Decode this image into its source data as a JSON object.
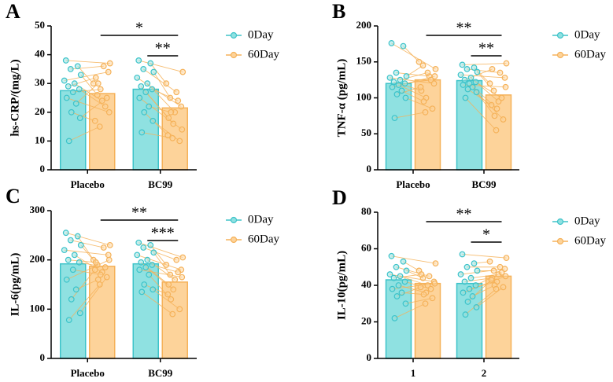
{
  "chart_data": [
    {
      "type": "bar",
      "panel": "A",
      "ylabel": "hs-CRP/(mg/L)",
      "categories": [
        "Placebo",
        "BC99"
      ],
      "ylim": [
        0,
        50
      ],
      "yticks": [
        0,
        10,
        20,
        30,
        40,
        50
      ],
      "annotations": [
        "*",
        "**"
      ],
      "series": [
        {
          "name": "0Day",
          "color": "#3ec3c9",
          "fill": "#8fe1e1",
          "values": [
            27.5,
            28
          ],
          "points": [
            [
              38,
              36,
              35,
              33,
              31,
              30,
              29,
              28,
              27,
              25,
              23,
              20,
              18,
              10
            ],
            [
              38,
              37,
              35,
              34,
              32,
              30,
              29,
              28,
              27,
              25,
              22,
              20,
              17,
              13
            ]
          ]
        },
        {
          "name": "60Day",
          "color": "#f5b25a",
          "fill": "#fdd39a",
          "values": [
            26.5,
            21.5
          ],
          "points": [
            [
              37,
              30,
              36,
              26,
              34,
              24,
              32,
              22,
              28,
              20,
              30,
              17,
              25,
              15
            ],
            [
              34,
              30,
              27,
              25,
              22,
              20,
              18,
              24,
              16,
              14,
              20,
              12,
              10,
              11
            ]
          ]
        }
      ]
    },
    {
      "type": "bar",
      "panel": "B",
      "ylabel": "TNF-α (pg/mL)",
      "categories": [
        "Placebo",
        "BC99"
      ],
      "ylim": [
        0,
        200
      ],
      "yticks": [
        0,
        50,
        100,
        150,
        200
      ],
      "annotations": [
        "**",
        "**"
      ],
      "series": [
        {
          "name": "0Day",
          "color": "#3ec3c9",
          "fill": "#8fe1e1",
          "values": [
            120,
            124
          ],
          "points": [
            [
              176,
              172,
              135,
              130,
              128,
              125,
              122,
              120,
              118,
              115,
              110,
              105,
              100,
              72
            ],
            [
              146,
              142,
              140,
              136,
              132,
              128,
              125,
              122,
              120,
              118,
              115,
              112,
              108,
              100
            ]
          ]
        },
        {
          "name": "60Day",
          "color": "#f5b25a",
          "fill": "#fdd39a",
          "values": [
            125,
            104
          ],
          "points": [
            [
              140,
              150,
              130,
              145,
              120,
              135,
              110,
              125,
              100,
              130,
              95,
              115,
              85,
              80
            ],
            [
              148,
              120,
              135,
              110,
              128,
              95,
              140,
              100,
              85,
              115,
              75,
              90,
              70,
              55
            ]
          ]
        }
      ]
    },
    {
      "type": "bar",
      "panel": "C",
      "ylabel": "IL-6(pg/mL)",
      "categories": [
        "Placebo",
        "BC99"
      ],
      "ylim": [
        0,
        300
      ],
      "yticks": [
        0,
        100,
        200,
        300
      ],
      "annotations": [
        "**",
        "***"
      ],
      "series": [
        {
          "name": "0Day",
          "color": "#3ec3c9",
          "fill": "#8fe1e1",
          "values": [
            192,
            192
          ],
          "points": [
            [
              255,
              248,
              240,
              230,
              220,
              210,
              200,
              195,
              180,
              160,
              140,
              120,
              92,
              78
            ],
            [
              235,
              230,
              225,
              215,
              210,
              200,
              195,
              190,
              185,
              180,
              170,
              150,
              140,
              135
            ]
          ]
        },
        {
          "name": "60Day",
          "color": "#f5b25a",
          "fill": "#fdd39a",
          "values": [
            187,
            155
          ],
          "points": [
            [
              230,
              200,
              225,
              190,
              210,
              175,
              195,
              185,
              170,
              200,
              160,
              180,
              165,
              150
            ],
            [
              205,
              190,
              200,
              170,
              180,
              160,
              150,
              175,
              140,
              165,
              120,
              130,
              100,
              90
            ]
          ]
        }
      ]
    },
    {
      "type": "bar",
      "panel": "D",
      "ylabel": "IL-10(pg/mL)",
      "categories": [
        "1",
        "2"
      ],
      "ylim": [
        0,
        80
      ],
      "yticks": [
        0,
        20,
        40,
        60,
        80
      ],
      "annotations": [
        "**",
        "*"
      ],
      "series": [
        {
          "name": "0Day",
          "color": "#3ec3c9",
          "fill": "#8fe1e1",
          "values": [
            43,
            41
          ],
          "points": [
            [
              56,
              53,
              50,
              48,
              46,
              45,
              44,
              42,
              40,
              38,
              36,
              34,
              30,
              22
            ],
            [
              57,
              52,
              50,
              48,
              46,
              44,
              42,
              40,
              38,
              36,
              34,
              31,
              28,
              24
            ]
          ]
        },
        {
          "name": "60Day",
          "color": "#f5b25a",
          "fill": "#fdd39a",
          "values": [
            41,
            45
          ],
          "points": [
            [
              52,
              48,
              45,
              44,
              42,
              40,
              46,
              38,
              36,
              41,
              35,
              39,
              33,
              30
            ],
            [
              55,
              53,
              50,
              48,
              49,
              46,
              44,
              47,
              42,
              45,
              40,
              43,
              39,
              38
            ]
          ]
        }
      ]
    }
  ]
}
